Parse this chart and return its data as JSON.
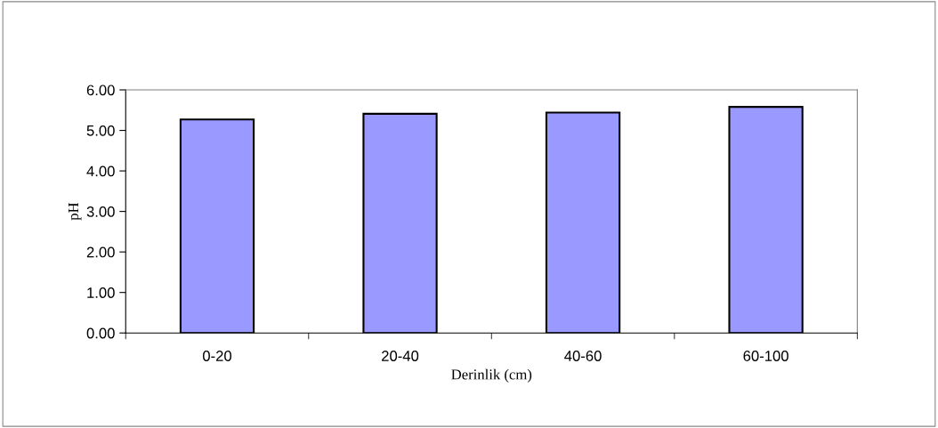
{
  "chart_data": {
    "type": "bar",
    "xlabel": "Derinlik (cm)",
    "ylabel": "pH",
    "categories": [
      "0-20",
      "20-40",
      "40-60",
      "60-100"
    ],
    "values": [
      5.27,
      5.41,
      5.44,
      5.58
    ],
    "color": "#9999ff",
    "ylim": [
      0,
      6
    ],
    "yticks": [
      {
        "value": 0,
        "label": "0.00"
      },
      {
        "value": 1,
        "label": "1.00"
      },
      {
        "value": 2,
        "label": "2.00"
      },
      {
        "value": 3,
        "label": "3.00"
      },
      {
        "value": 4,
        "label": "4.00"
      },
      {
        "value": 5,
        "label": "5.00"
      },
      {
        "value": 6,
        "label": "6.00"
      }
    ],
    "grid": false,
    "legend": false
  }
}
